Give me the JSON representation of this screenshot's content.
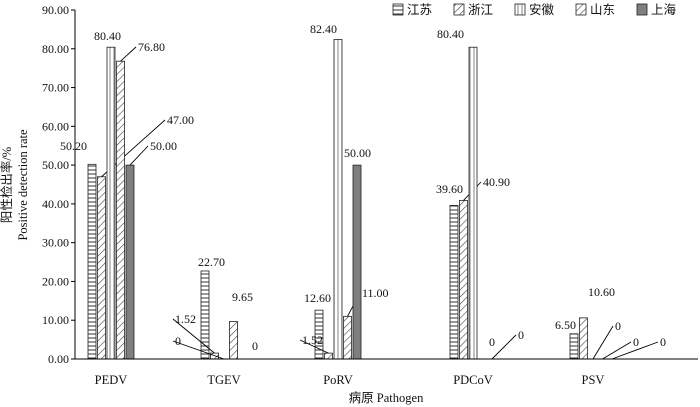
{
  "chart_data": {
    "type": "bar",
    "categories": [
      "PEDV",
      "TGEV",
      "PoRV",
      "PDCoV",
      "PSV"
    ],
    "xlabel": "病原 Pathogen",
    "ylabel_cn": "阳性检出率/%",
    "ylabel_en": "Positive detection rate",
    "ylim": [
      0,
      90
    ],
    "yticks": [
      "0.00",
      "10.00",
      "20.00",
      "30.00",
      "40.00",
      "50.00",
      "60.00",
      "70.00",
      "80.00",
      "90.00"
    ],
    "grid": false,
    "legend_position": "top-right",
    "series": [
      {
        "name": "江苏",
        "pattern": "hbars",
        "color": "#ffffff",
        "values": [
          50.2,
          22.7,
          12.6,
          39.6,
          6.5
        ],
        "labels": [
          "50.20",
          "22.70",
          "12.60",
          "39.60",
          "6.50"
        ]
      },
      {
        "name": "浙江",
        "pattern": "diagonal",
        "color": "#ffffff",
        "values": [
          47.0,
          1.52,
          1.52,
          40.9,
          10.6
        ],
        "labels": [
          "47.00",
          "1.52",
          "1.52",
          "40.90",
          "10.60"
        ]
      },
      {
        "name": "安徽",
        "pattern": "vbars",
        "color": "#ffffff",
        "values": [
          80.4,
          0,
          82.4,
          80.4,
          0
        ],
        "labels": [
          "80.40",
          "0",
          "82.40",
          "80.40",
          "0"
        ]
      },
      {
        "name": "山东",
        "pattern": "diagonal",
        "color": "#ffffff",
        "values": [
          76.8,
          9.65,
          11.0,
          0,
          0
        ],
        "labels": [
          "76.80",
          "9.65",
          "11.00",
          "0",
          "0"
        ]
      },
      {
        "name": "上海",
        "pattern": "solid",
        "color": "#7f7f7f",
        "values": [
          50.0,
          0,
          50.0,
          0,
          0
        ],
        "labels": [
          "50.00",
          "0",
          "50.00",
          "0",
          "0"
        ]
      }
    ]
  }
}
